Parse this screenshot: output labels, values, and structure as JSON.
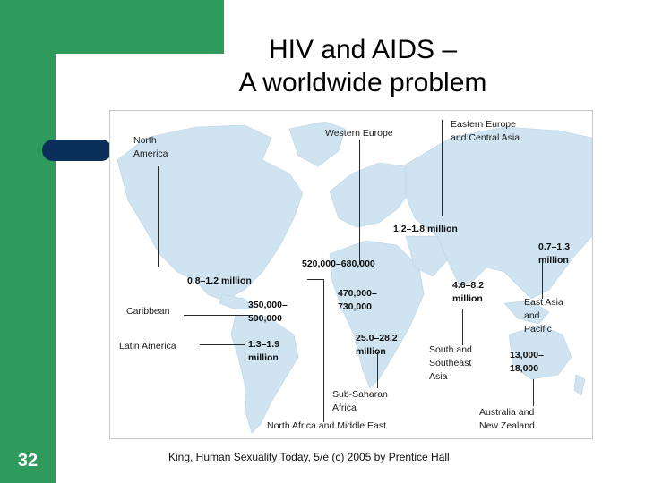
{
  "slide": {
    "number": "32",
    "title_line1": "HIV and AIDS –",
    "title_line2": "A worldwide problem",
    "caption": "King, Human Sexuality Today, 5/e (c) 2005 by Prentice Hall"
  },
  "map": {
    "region_labels": {
      "north_america": "North\nAmerica",
      "western_europe": "Western Europe",
      "eastern_europe": "Eastern Europe\nand Central Asia",
      "caribbean": "Caribbean",
      "latin_america": "Latin America",
      "east_asia": "East Asia\nand\nPacific",
      "south_se_asia": "South and\nSoutheast\nAsia",
      "sub_saharan": "Sub-Saharan\nAfrica",
      "north_africa": "North Africa and Middle East",
      "australia": "Australia and\nNew Zealand"
    },
    "values": {
      "north_america": "0.8–1.2 million",
      "western_europe": "520,000–680,000",
      "eastern_europe": "1.2–1.8 million",
      "caribbean": "350,000–\n590,000",
      "latin_america": "1.3–1.9\nmillion",
      "north_africa": "470,000–\n730,000",
      "sub_saharan": "25.0–28.2\nmillion",
      "south_se_asia": "4.6–8.2\nmillion",
      "east_asia": "0.7–1.3\nmillion",
      "australia": "13,000–\n18,000"
    },
    "land_color": "#cfe3f1"
  }
}
